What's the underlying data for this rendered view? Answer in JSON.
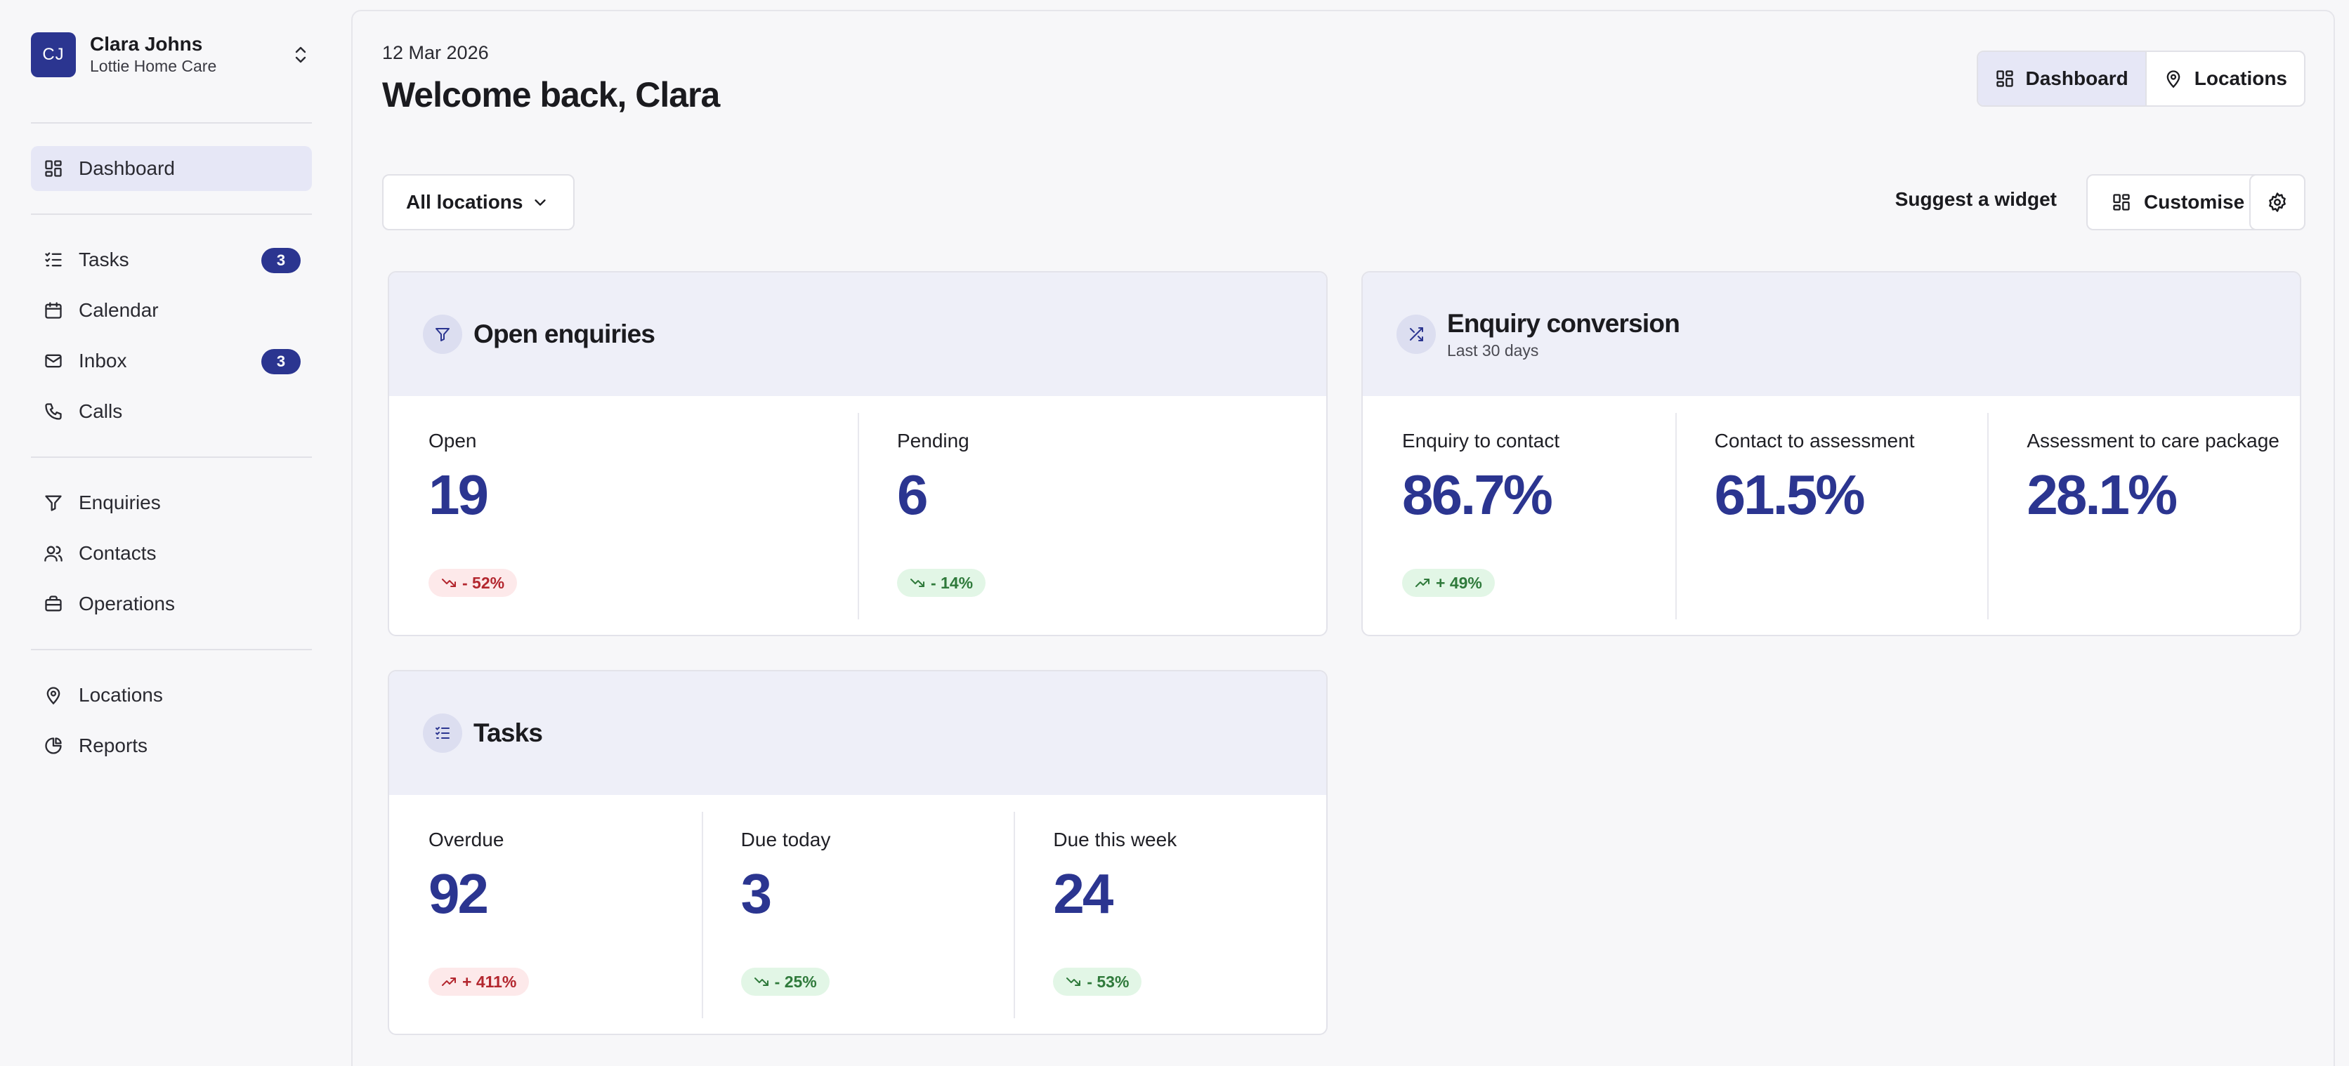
{
  "account": {
    "initials": "CJ",
    "name": "Clara Johns",
    "org": "Lottie Home Care"
  },
  "sidebar": {
    "items": [
      {
        "label": "Dashboard",
        "icon": "dashboard-icon",
        "active": true
      },
      {
        "label": "Tasks",
        "icon": "tasks-icon",
        "badge": "3"
      },
      {
        "label": "Calendar",
        "icon": "calendar-icon"
      },
      {
        "label": "Inbox",
        "icon": "inbox-icon",
        "badge": "3"
      },
      {
        "label": "Calls",
        "icon": "phone-icon"
      },
      {
        "label": "Enquiries",
        "icon": "filter-icon"
      },
      {
        "label": "Contacts",
        "icon": "contacts-icon"
      },
      {
        "label": "Operations",
        "icon": "briefcase-icon"
      },
      {
        "label": "Locations",
        "icon": "map-pin-icon"
      },
      {
        "label": "Reports",
        "icon": "pie-chart-icon"
      }
    ]
  },
  "header": {
    "date": "12 Mar 2026",
    "welcome": "Welcome back, Clara",
    "view_switch": {
      "dashboard": "Dashboard",
      "locations": "Locations"
    }
  },
  "toolbar": {
    "location_select": "All locations",
    "suggest": "Suggest a widget",
    "customise": "Customise"
  },
  "colors": {
    "accent": "#2b3590",
    "bad": "#b3262e",
    "good": "#2f7a3b"
  },
  "widgets": {
    "open_enquiries": {
      "title": "Open enquiries",
      "metrics": [
        {
          "label": "Open",
          "value": "19",
          "delta": "- 52%",
          "trend": "down",
          "status": "bad"
        },
        {
          "label": "Pending",
          "value": "6",
          "delta": "- 14%",
          "trend": "down",
          "status": "good"
        }
      ]
    },
    "enquiry_conversion": {
      "title": "Enquiry conversion",
      "subtitle": "Last 30 days",
      "metrics": [
        {
          "label": "Enquiry to contact",
          "value": "86.7%",
          "delta": "+ 49%",
          "trend": "up",
          "status": "good"
        },
        {
          "label": "Contact to assessment",
          "value": "61.5%"
        },
        {
          "label": "Assessment to care package",
          "value": "28.1%"
        }
      ]
    },
    "tasks": {
      "title": "Tasks",
      "metrics": [
        {
          "label": "Overdue",
          "value": "92",
          "delta": "+ 411%",
          "trend": "up",
          "status": "bad"
        },
        {
          "label": "Due today",
          "value": "3",
          "delta": "- 25%",
          "trend": "down",
          "status": "good"
        },
        {
          "label": "Due this week",
          "value": "24",
          "delta": "- 53%",
          "trend": "down",
          "status": "good"
        }
      ]
    }
  }
}
